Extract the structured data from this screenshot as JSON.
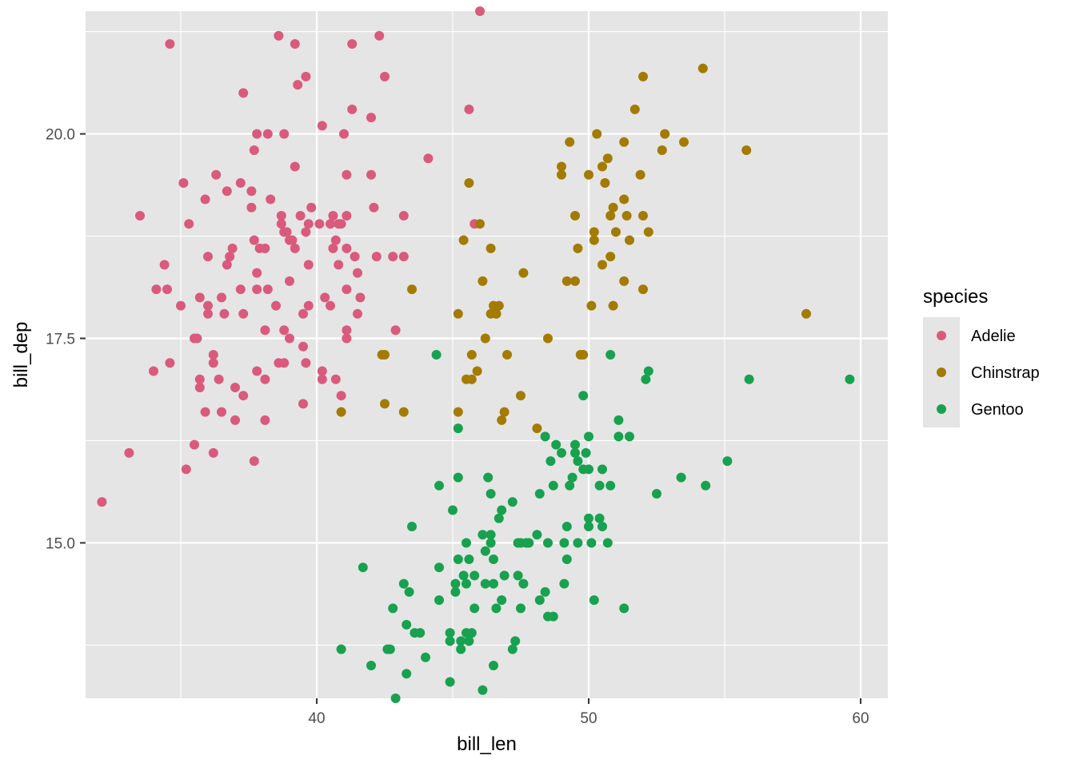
{
  "chart_data": {
    "type": "scatter",
    "xlabel": "bill_len",
    "ylabel": "bill_dep",
    "xlim": [
      31.5,
      61.0
    ],
    "ylim": [
      13.1,
      21.5
    ],
    "x_ticks": [
      40,
      50,
      60
    ],
    "x_tick_labels": [
      "40",
      "50",
      "60"
    ],
    "y_ticks": [
      15.0,
      17.5,
      20.0
    ],
    "y_tick_labels": [
      "15.0",
      "17.5",
      "20.0"
    ],
    "grid": true,
    "legend": {
      "title": "species",
      "position": "right"
    },
    "colors": {
      "panel": "#e5e5e5",
      "grid": "#ffffff"
    },
    "series": [
      {
        "name": "Adelie",
        "color": "#d95a7d",
        "points": [
          [
            32.1,
            15.5
          ],
          [
            33.1,
            16.1
          ],
          [
            33.5,
            19.0
          ],
          [
            34.0,
            17.1
          ],
          [
            34.1,
            18.1
          ],
          [
            34.4,
            18.4
          ],
          [
            34.5,
            18.1
          ],
          [
            34.6,
            21.1
          ],
          [
            34.6,
            17.2
          ],
          [
            35.0,
            17.9
          ],
          [
            35.1,
            19.4
          ],
          [
            35.2,
            15.9
          ],
          [
            35.3,
            18.9
          ],
          [
            35.5,
            17.5
          ],
          [
            35.5,
            16.2
          ],
          [
            35.6,
            17.5
          ],
          [
            35.7,
            16.9
          ],
          [
            35.7,
            18.0
          ],
          [
            35.7,
            17.0
          ],
          [
            35.9,
            19.2
          ],
          [
            35.9,
            16.6
          ],
          [
            36.0,
            18.5
          ],
          [
            36.0,
            17.9
          ],
          [
            36.0,
            17.8
          ],
          [
            36.2,
            16.1
          ],
          [
            36.2,
            17.3
          ],
          [
            36.2,
            17.2
          ],
          [
            36.3,
            19.5
          ],
          [
            36.4,
            17.0
          ],
          [
            36.5,
            18.0
          ],
          [
            36.5,
            16.6
          ],
          [
            36.6,
            17.8
          ],
          [
            36.7,
            18.4
          ],
          [
            36.7,
            19.3
          ],
          [
            36.8,
            18.5
          ],
          [
            36.9,
            18.6
          ],
          [
            37.0,
            16.5
          ],
          [
            37.0,
            16.9
          ],
          [
            37.2,
            18.1
          ],
          [
            37.2,
            19.4
          ],
          [
            37.3,
            20.5
          ],
          [
            37.3,
            17.8
          ],
          [
            37.3,
            16.8
          ],
          [
            37.6,
            19.1
          ],
          [
            37.6,
            19.3
          ],
          [
            37.7,
            18.7
          ],
          [
            37.7,
            16.0
          ],
          [
            37.7,
            19.8
          ],
          [
            37.8,
            18.1
          ],
          [
            37.8,
            17.1
          ],
          [
            37.8,
            20.0
          ],
          [
            37.8,
            18.3
          ],
          [
            37.9,
            18.6
          ],
          [
            38.1,
            18.6
          ],
          [
            38.1,
            17.0
          ],
          [
            38.1,
            16.5
          ],
          [
            38.1,
            17.6
          ],
          [
            38.2,
            18.1
          ],
          [
            38.2,
            20.0
          ],
          [
            38.3,
            19.2
          ],
          [
            38.5,
            17.9
          ],
          [
            38.6,
            21.2
          ],
          [
            38.6,
            17.2
          ],
          [
            38.7,
            19.0
          ],
          [
            38.8,
            20.0
          ],
          [
            38.8,
            18.8
          ],
          [
            38.8,
            17.6
          ],
          [
            38.8,
            17.2
          ],
          [
            38.9,
            18.8
          ],
          [
            39.0,
            17.5
          ],
          [
            39.0,
            18.7
          ],
          [
            39.1,
            18.7
          ],
          [
            39.2,
            19.6
          ],
          [
            39.2,
            21.1
          ],
          [
            39.2,
            18.6
          ],
          [
            39.3,
            20.6
          ],
          [
            39.5,
            17.8
          ],
          [
            39.5,
            16.7
          ],
          [
            39.5,
            17.4
          ],
          [
            39.6,
            20.7
          ],
          [
            39.6,
            18.8
          ],
          [
            39.6,
            17.2
          ],
          [
            39.7,
            18.4
          ],
          [
            39.7,
            17.9
          ],
          [
            39.7,
            18.9
          ],
          [
            39.8,
            19.1
          ],
          [
            40.1,
            18.9
          ],
          [
            40.2,
            17.0
          ],
          [
            40.2,
            20.1
          ],
          [
            40.2,
            17.1
          ],
          [
            40.3,
            18.0
          ],
          [
            40.5,
            17.9
          ],
          [
            40.5,
            18.9
          ],
          [
            40.6,
            18.6
          ],
          [
            40.6,
            19.0
          ],
          [
            40.7,
            17.0
          ],
          [
            40.8,
            18.4
          ],
          [
            40.8,
            18.9
          ],
          [
            40.9,
            16.8
          ],
          [
            41.0,
            20.0
          ],
          [
            41.1,
            17.6
          ],
          [
            41.1,
            19.0
          ],
          [
            41.1,
            18.1
          ],
          [
            41.1,
            17.5
          ],
          [
            41.1,
            18.6
          ],
          [
            41.3,
            20.3
          ],
          [
            41.3,
            21.1
          ],
          [
            41.4,
            18.5
          ],
          [
            41.5,
            18.3
          ],
          [
            41.6,
            18.0
          ],
          [
            42.0,
            20.2
          ],
          [
            42.1,
            19.1
          ],
          [
            42.2,
            18.5
          ],
          [
            42.3,
            21.2
          ],
          [
            42.5,
            20.7
          ],
          [
            42.8,
            18.5
          ],
          [
            43.2,
            18.5
          ],
          [
            43.2,
            19.0
          ],
          [
            44.1,
            19.7
          ],
          [
            45.6,
            20.3
          ],
          [
            45.8,
            18.9
          ],
          [
            46.0,
            21.5
          ],
          [
            41.1,
            19.5
          ],
          [
            42.9,
            17.6
          ],
          [
            41.5,
            17.8
          ],
          [
            42.0,
            19.5
          ],
          [
            40.7,
            18.7
          ],
          [
            40.9,
            18.9
          ],
          [
            38.7,
            18.9
          ],
          [
            39.0,
            18.2
          ],
          [
            39.4,
            19.0
          ]
        ]
      },
      {
        "name": "Chinstrap",
        "color": "#a37b00",
        "points": [
          [
            40.9,
            16.6
          ],
          [
            42.4,
            17.3
          ],
          [
            42.5,
            16.7
          ],
          [
            42.5,
            17.3
          ],
          [
            43.2,
            16.6
          ],
          [
            43.5,
            18.1
          ],
          [
            45.2,
            16.6
          ],
          [
            45.2,
            17.8
          ],
          [
            45.4,
            18.7
          ],
          [
            45.5,
            17.0
          ],
          [
            45.6,
            19.4
          ],
          [
            45.7,
            17.3
          ],
          [
            45.7,
            17.0
          ],
          [
            45.9,
            17.1
          ],
          [
            46.0,
            18.9
          ],
          [
            46.1,
            18.2
          ],
          [
            46.2,
            17.5
          ],
          [
            46.4,
            17.8
          ],
          [
            46.4,
            18.6
          ],
          [
            46.5,
            17.9
          ],
          [
            46.6,
            17.8
          ],
          [
            46.7,
            17.9
          ],
          [
            46.8,
            16.5
          ],
          [
            46.9,
            16.6
          ],
          [
            47.0,
            17.3
          ],
          [
            47.5,
            16.8
          ],
          [
            47.6,
            18.3
          ],
          [
            48.1,
            16.4
          ],
          [
            48.5,
            17.5
          ],
          [
            49.0,
            19.5
          ],
          [
            49.0,
            19.6
          ],
          [
            49.2,
            18.2
          ],
          [
            49.3,
            19.9
          ],
          [
            49.5,
            18.2
          ],
          [
            49.6,
            18.6
          ],
          [
            49.7,
            17.3
          ],
          [
            49.8,
            17.3
          ],
          [
            50.0,
            19.5
          ],
          [
            50.1,
            17.9
          ],
          [
            50.2,
            18.7
          ],
          [
            50.3,
            20.0
          ],
          [
            50.5,
            18.4
          ],
          [
            50.5,
            19.6
          ],
          [
            50.6,
            19.4
          ],
          [
            50.7,
            19.7
          ],
          [
            50.8,
            18.5
          ],
          [
            50.8,
            19.0
          ],
          [
            50.9,
            17.9
          ],
          [
            51.0,
            18.8
          ],
          [
            51.3,
            18.2
          ],
          [
            51.3,
            19.9
          ],
          [
            51.4,
            19.0
          ],
          [
            51.5,
            18.7
          ],
          [
            51.7,
            20.3
          ],
          [
            52.0,
            18.1
          ],
          [
            52.0,
            19.0
          ],
          [
            52.0,
            20.7
          ],
          [
            52.2,
            18.8
          ],
          [
            52.8,
            20.0
          ],
          [
            53.5,
            19.9
          ],
          [
            54.2,
            20.8
          ],
          [
            55.8,
            19.8
          ],
          [
            58.0,
            17.8
          ],
          [
            49.5,
            19.0
          ],
          [
            50.2,
            18.8
          ],
          [
            50.9,
            19.1
          ],
          [
            51.3,
            19.2
          ],
          [
            51.9,
            19.5
          ],
          [
            52.7,
            19.8
          ],
          [
            46.6,
            17.8
          ]
        ]
      },
      {
        "name": "Gentoo",
        "color": "#18a14f",
        "points": [
          [
            40.9,
            13.7
          ],
          [
            41.7,
            14.7
          ],
          [
            42.0,
            13.5
          ],
          [
            42.6,
            13.7
          ],
          [
            42.7,
            13.7
          ],
          [
            42.8,
            14.2
          ],
          [
            42.9,
            13.1
          ],
          [
            43.2,
            14.5
          ],
          [
            43.3,
            14.0
          ],
          [
            43.3,
            13.4
          ],
          [
            43.4,
            14.4
          ],
          [
            43.5,
            15.2
          ],
          [
            43.6,
            13.9
          ],
          [
            43.8,
            13.9
          ],
          [
            44.0,
            13.6
          ],
          [
            44.4,
            17.3
          ],
          [
            44.5,
            15.7
          ],
          [
            44.5,
            14.3
          ],
          [
            44.5,
            14.7
          ],
          [
            44.9,
            13.3
          ],
          [
            44.9,
            13.8
          ],
          [
            45.0,
            15.4
          ],
          [
            45.1,
            14.5
          ],
          [
            45.1,
            14.4
          ],
          [
            45.2,
            14.8
          ],
          [
            45.2,
            15.8
          ],
          [
            45.2,
            16.4
          ],
          [
            45.3,
            13.8
          ],
          [
            45.3,
            13.7
          ],
          [
            45.4,
            14.6
          ],
          [
            45.5,
            13.9
          ],
          [
            45.5,
            14.5
          ],
          [
            45.5,
            15.0
          ],
          [
            45.6,
            13.8
          ],
          [
            45.7,
            13.9
          ],
          [
            45.8,
            14.2
          ],
          [
            45.8,
            14.6
          ],
          [
            46.1,
            13.2
          ],
          [
            46.1,
            15.1
          ],
          [
            46.2,
            14.5
          ],
          [
            46.2,
            14.9
          ],
          [
            46.3,
            15.8
          ],
          [
            46.4,
            15.0
          ],
          [
            46.4,
            15.6
          ],
          [
            46.5,
            14.5
          ],
          [
            46.5,
            13.5
          ],
          [
            46.5,
            14.8
          ],
          [
            46.6,
            14.2
          ],
          [
            46.7,
            15.3
          ],
          [
            46.8,
            14.3
          ],
          [
            46.8,
            15.4
          ],
          [
            46.9,
            14.6
          ],
          [
            47.2,
            13.7
          ],
          [
            47.2,
            15.5
          ],
          [
            47.3,
            13.8
          ],
          [
            47.4,
            14.6
          ],
          [
            47.5,
            14.2
          ],
          [
            47.5,
            15.0
          ],
          [
            47.6,
            14.5
          ],
          [
            47.7,
            15.0
          ],
          [
            47.8,
            15.0
          ],
          [
            48.1,
            15.1
          ],
          [
            48.2,
            14.3
          ],
          [
            48.2,
            15.6
          ],
          [
            48.4,
            14.4
          ],
          [
            48.4,
            16.3
          ],
          [
            48.5,
            14.1
          ],
          [
            48.5,
            15.0
          ],
          [
            48.6,
            16.0
          ],
          [
            48.7,
            14.1
          ],
          [
            48.7,
            15.7
          ],
          [
            48.8,
            16.2
          ],
          [
            49.0,
            16.1
          ],
          [
            49.1,
            14.5
          ],
          [
            49.1,
            15.0
          ],
          [
            49.2,
            15.2
          ],
          [
            49.3,
            15.7
          ],
          [
            49.4,
            15.8
          ],
          [
            49.5,
            16.1
          ],
          [
            49.5,
            16.2
          ],
          [
            49.6,
            15.0
          ],
          [
            49.6,
            16.0
          ],
          [
            49.8,
            15.9
          ],
          [
            49.8,
            16.8
          ],
          [
            49.9,
            16.1
          ],
          [
            50.0,
            15.2
          ],
          [
            50.0,
            15.3
          ],
          [
            50.0,
            15.9
          ],
          [
            50.1,
            15.0
          ],
          [
            50.2,
            14.3
          ],
          [
            50.4,
            15.3
          ],
          [
            50.4,
            15.7
          ],
          [
            50.5,
            15.2
          ],
          [
            50.5,
            15.9
          ],
          [
            50.7,
            15.0
          ],
          [
            50.8,
            15.7
          ],
          [
            50.8,
            17.3
          ],
          [
            51.1,
            16.3
          ],
          [
            51.1,
            16.5
          ],
          [
            51.3,
            14.2
          ],
          [
            51.5,
            16.3
          ],
          [
            52.1,
            17.0
          ],
          [
            52.2,
            17.1
          ],
          [
            52.5,
            15.6
          ],
          [
            53.4,
            15.8
          ],
          [
            54.3,
            15.7
          ],
          [
            55.1,
            16.0
          ],
          [
            55.9,
            17.0
          ],
          [
            59.6,
            17.0
          ],
          [
            50.0,
            16.3
          ],
          [
            49.2,
            14.8
          ],
          [
            47.4,
            15.0
          ],
          [
            46.4,
            15.1
          ],
          [
            45.6,
            14.8
          ],
          [
            44.9,
            13.9
          ]
        ]
      }
    ]
  }
}
